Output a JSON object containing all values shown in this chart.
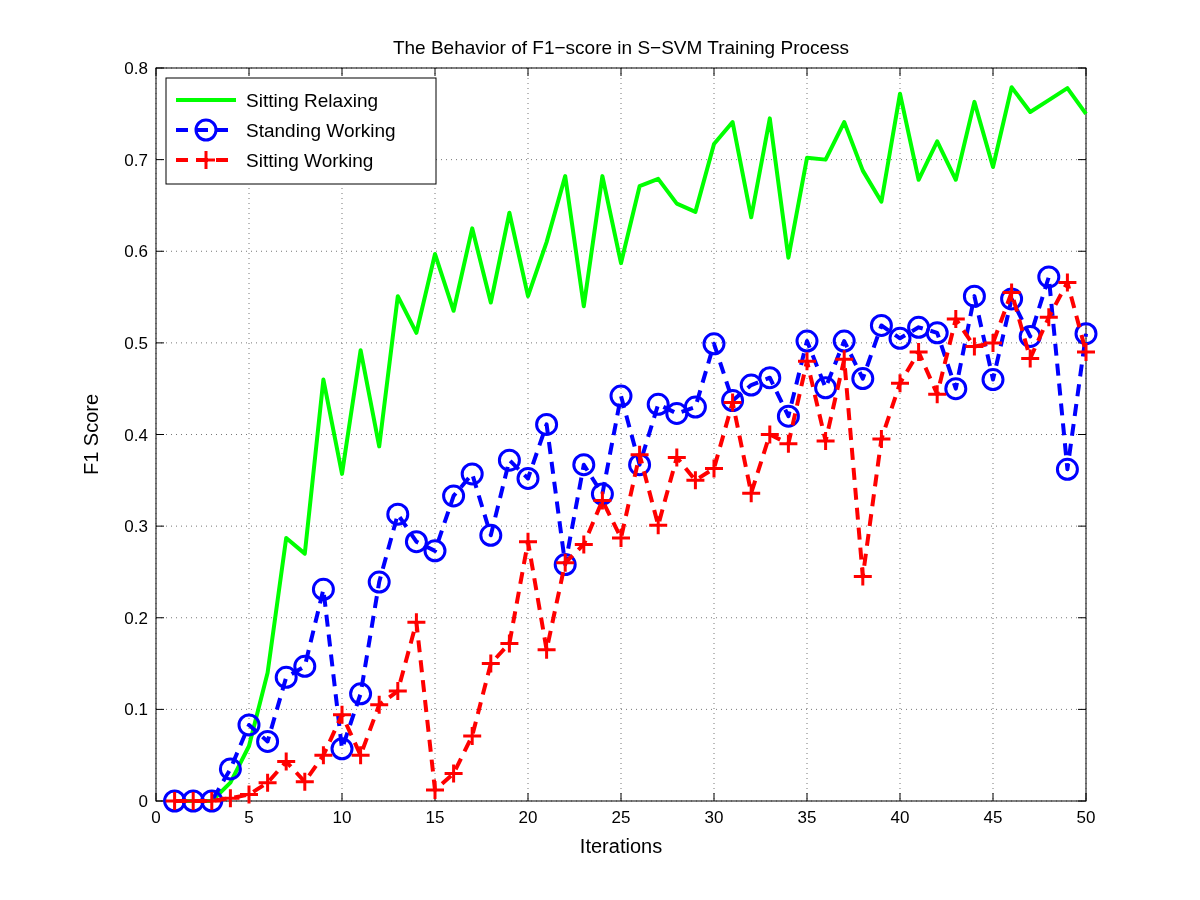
{
  "chart_data": {
    "type": "line",
    "title": "The Behavior of F1−score in S−SVM Training Process",
    "xlabel": "Iterations",
    "ylabel": "F1 Score",
    "xlim": [
      0,
      50
    ],
    "xticks": [
      0,
      5,
      10,
      15,
      20,
      25,
      30,
      35,
      40,
      45,
      50
    ],
    "ylim": [
      0,
      0.8
    ],
    "yticks": [
      0,
      0.1,
      0.2,
      0.3,
      0.4,
      0.5,
      0.6,
      0.7,
      0.8
    ],
    "grid": true,
    "legend": "top left",
    "x": [
      1,
      2,
      3,
      4,
      5,
      6,
      7,
      8,
      9,
      10,
      11,
      12,
      13,
      14,
      15,
      16,
      17,
      18,
      19,
      20,
      21,
      22,
      23,
      24,
      25,
      26,
      27,
      28,
      29,
      30,
      31,
      32,
      33,
      34,
      35,
      36,
      37,
      38,
      39,
      40,
      41,
      42,
      43,
      44,
      45,
      46,
      47,
      48,
      49,
      50
    ],
    "series": [
      {
        "name": "Sitting Relaxing",
        "color": "#00ff00",
        "marker": "none",
        "line_style": "solid",
        "values": [
          0,
          0,
          0,
          0.02,
          0.06,
          0.14,
          0.287,
          0.27,
          0.46,
          0.357,
          0.492,
          0.387,
          0.551,
          0.511,
          0.597,
          0.535,
          0.625,
          0.544,
          0.642,
          0.551,
          0.61,
          0.682,
          0.54,
          0.682,
          0.587,
          0.671,
          0.679,
          0.652,
          0.643,
          0.717,
          0.741,
          0.637,
          0.745,
          0.593,
          0.702,
          0.7,
          0.741,
          0.688,
          0.654,
          0.772,
          0.678,
          0.72,
          0.678,
          0.763,
          0.692,
          0.779,
          0.752,
          0.765,
          0.778,
          0.75
        ]
      },
      {
        "name": "Standing Working",
        "color": "#0000ff",
        "marker": "circle",
        "line_style": "dashed",
        "values": [
          0,
          0,
          0,
          0.035,
          0.083,
          0.065,
          0.135,
          0.147,
          0.231,
          0.057,
          0.117,
          0.239,
          0.313,
          0.283,
          0.273,
          0.333,
          0.357,
          0.29,
          0.372,
          0.352,
          0.411,
          0.258,
          0.367,
          0.335,
          0.442,
          0.367,
          0.433,
          0.423,
          0.43,
          0.499,
          0.437,
          0.454,
          0.462,
          0.42,
          0.502,
          0.451,
          0.502,
          0.461,
          0.519,
          0.505,
          0.517,
          0.511,
          0.45,
          0.551,
          0.46,
          0.548,
          0.507,
          0.572,
          0.362,
          0.51
        ]
      },
      {
        "name": "Sitting Working",
        "color": "#ff0000",
        "marker": "cross",
        "line_style": "dashed",
        "values": [
          0,
          0,
          0,
          0.003,
          0.007,
          0.02,
          0.043,
          0.021,
          0.05,
          0.094,
          0.05,
          0.105,
          0.12,
          0.195,
          0.012,
          0.03,
          0.071,
          0.15,
          0.172,
          0.283,
          0.165,
          0.26,
          0.28,
          0.328,
          0.287,
          0.378,
          0.301,
          0.375,
          0.35,
          0.363,
          0.435,
          0.336,
          0.4,
          0.39,
          0.48,
          0.393,
          0.482,
          0.245,
          0.395,
          0.456,
          0.49,
          0.444,
          0.526,
          0.496,
          0.5,
          0.555,
          0.483,
          0.528,
          0.566,
          0.49
        ]
      }
    ]
  }
}
